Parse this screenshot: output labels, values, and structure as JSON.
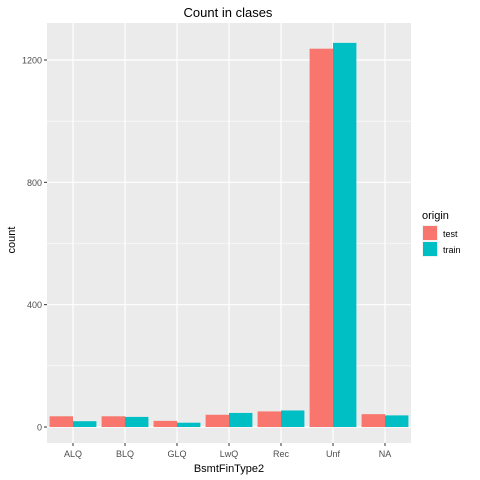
{
  "chart_data": {
    "type": "bar",
    "title": "Count in clases",
    "xlabel": "BsmtFinType2",
    "ylabel": "count",
    "categories": [
      "ALQ",
      "BLQ",
      "GLQ",
      "LwQ",
      "Rec",
      "Unf",
      "NA"
    ],
    "series": [
      {
        "name": "test",
        "color": "#F8766D",
        "values": [
          35,
          35,
          20,
          40,
          51,
          1237,
          42
        ]
      },
      {
        "name": "train",
        "color": "#00BFC4",
        "values": [
          19,
          33,
          14,
          46,
          54,
          1256,
          38
        ]
      }
    ],
    "ylim": [
      0,
      1300
    ],
    "yticks": [
      0,
      400,
      800,
      1200
    ],
    "grid": true,
    "legend": {
      "title": "origin",
      "position": "right"
    },
    "panel_background": "#EBEBEB",
    "grid_color": "#FFFFFF"
  }
}
